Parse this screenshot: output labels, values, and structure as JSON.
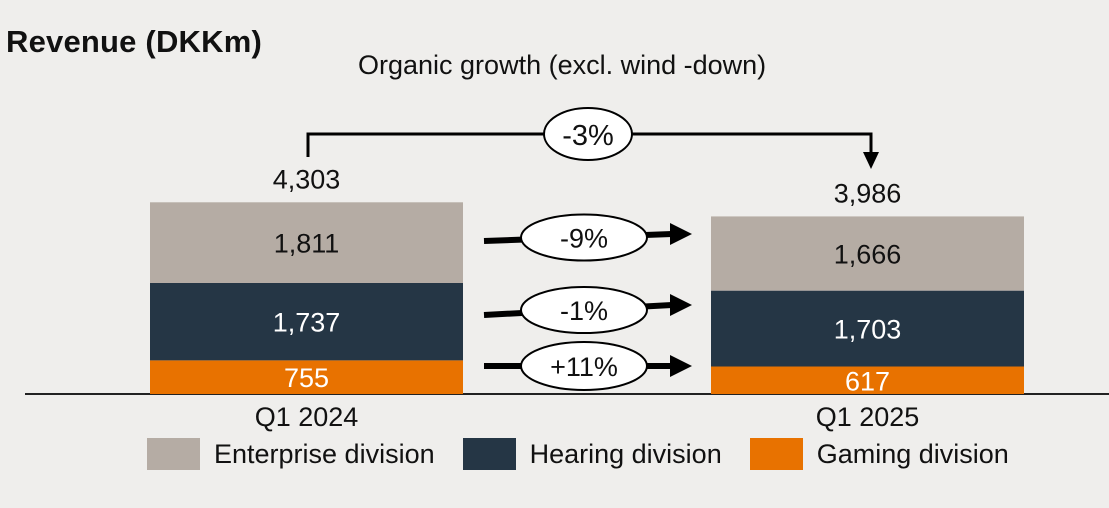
{
  "title": "Revenue (DKKm)",
  "subtitle": "Organic growth (excl. wind -down)",
  "chart_data": {
    "type": "bar",
    "stacked": true,
    "categories": [
      "Q1 2024",
      "Q1 2025"
    ],
    "totals": [
      "4,303",
      "3,986"
    ],
    "series": [
      {
        "name": "Gaming division",
        "values": [
          755,
          617
        ],
        "labels": [
          "755",
          "617"
        ],
        "color": "#e87200"
      },
      {
        "name": "Hearing division",
        "values": [
          1737,
          1703
        ],
        "labels": [
          "1,737",
          "1,703"
        ],
        "color": "#253645"
      },
      {
        "name": "Enterprise division",
        "values": [
          1811,
          1666
        ],
        "labels": [
          "1,811",
          "1,666"
        ],
        "color": "#b5aca4"
      }
    ],
    "growth_labels": [
      "+11%",
      "-1%",
      "-9%"
    ],
    "overall_growth": "-3%",
    "legend_position": "bottom",
    "grid": false
  },
  "legend_order": [
    "Enterprise division",
    "Hearing division",
    "Gaming division"
  ]
}
